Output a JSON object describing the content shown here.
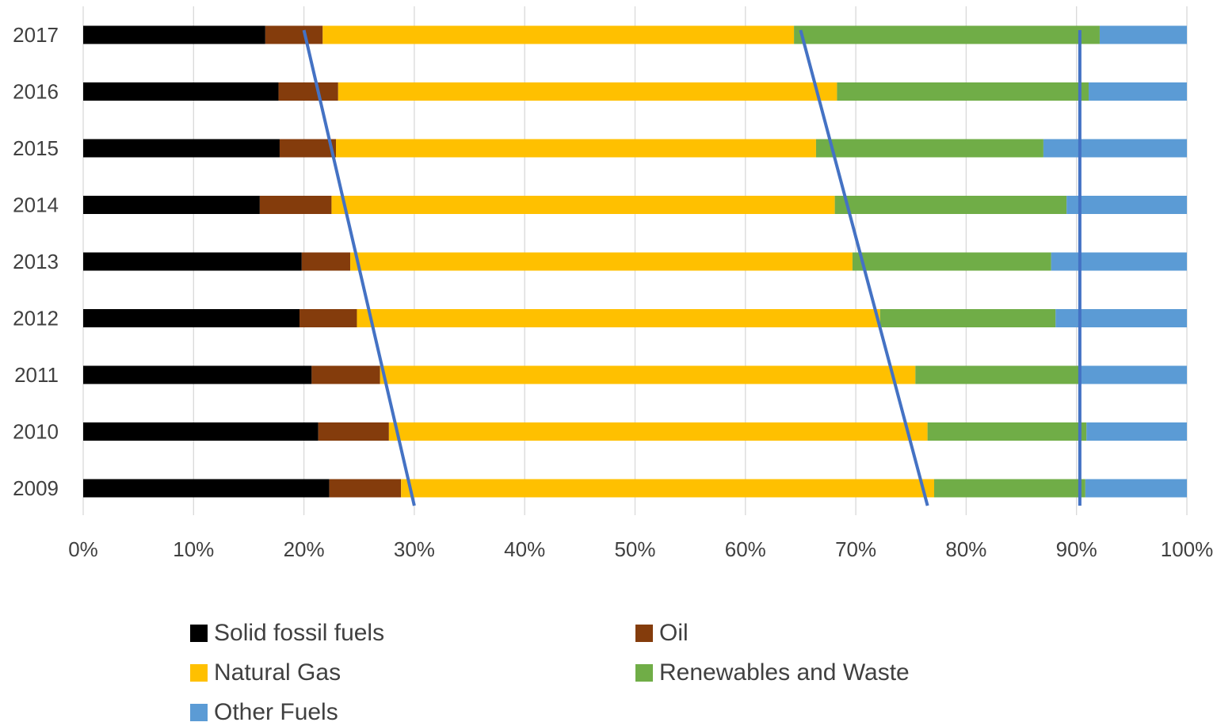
{
  "chart_data": {
    "type": "bar",
    "orientation": "horizontal",
    "stacking": "percent",
    "categories": [
      "2017",
      "2016",
      "2015",
      "2014",
      "2013",
      "2012",
      "2011",
      "2010",
      "2009"
    ],
    "series": [
      {
        "name": "Solid fossil fuels",
        "color": "#000000",
        "values": [
          16.5,
          17.7,
          17.8,
          16.0,
          19.8,
          19.6,
          20.7,
          21.3,
          22.3
        ]
      },
      {
        "name": "Oil",
        "color": "#843C0C",
        "values": [
          5.2,
          5.4,
          5.1,
          6.5,
          4.4,
          5.2,
          6.2,
          6.4,
          6.5
        ]
      },
      {
        "name": "Natural Gas",
        "color": "#FFC000",
        "values": [
          42.7,
          45.2,
          43.5,
          45.6,
          45.5,
          47.4,
          48.5,
          48.8,
          48.3
        ]
      },
      {
        "name": "Renewables and Waste",
        "color": "#70AD47",
        "values": [
          27.7,
          22.8,
          20.6,
          21.0,
          18.0,
          15.9,
          14.8,
          14.4,
          13.7
        ]
      },
      {
        "name": "Other Fuels",
        "color": "#5B9BD5",
        "values": [
          7.9,
          8.9,
          13.0,
          10.9,
          12.3,
          11.9,
          9.8,
          9.1,
          9.2
        ]
      }
    ],
    "xaxis": {
      "ticks": [
        "0%",
        "10%",
        "20%",
        "30%",
        "40%",
        "50%",
        "60%",
        "70%",
        "80%",
        "90%",
        "100%"
      ],
      "range": [
        0,
        100
      ]
    },
    "grid": true,
    "legend_position": "bottom",
    "trend_lines": {
      "color": "#4472C4",
      "lines": [
        {
          "from": {
            "category": "2017",
            "x": 20
          },
          "to": {
            "category": "2009",
            "x": 30
          }
        },
        {
          "from": {
            "category": "2017",
            "x": 65
          },
          "to": {
            "category": "2009",
            "x": 76.5
          }
        },
        {
          "from": {
            "category": "2017",
            "x": 90.3
          },
          "to": {
            "category": "2009",
            "x": 90.3
          }
        }
      ]
    }
  }
}
